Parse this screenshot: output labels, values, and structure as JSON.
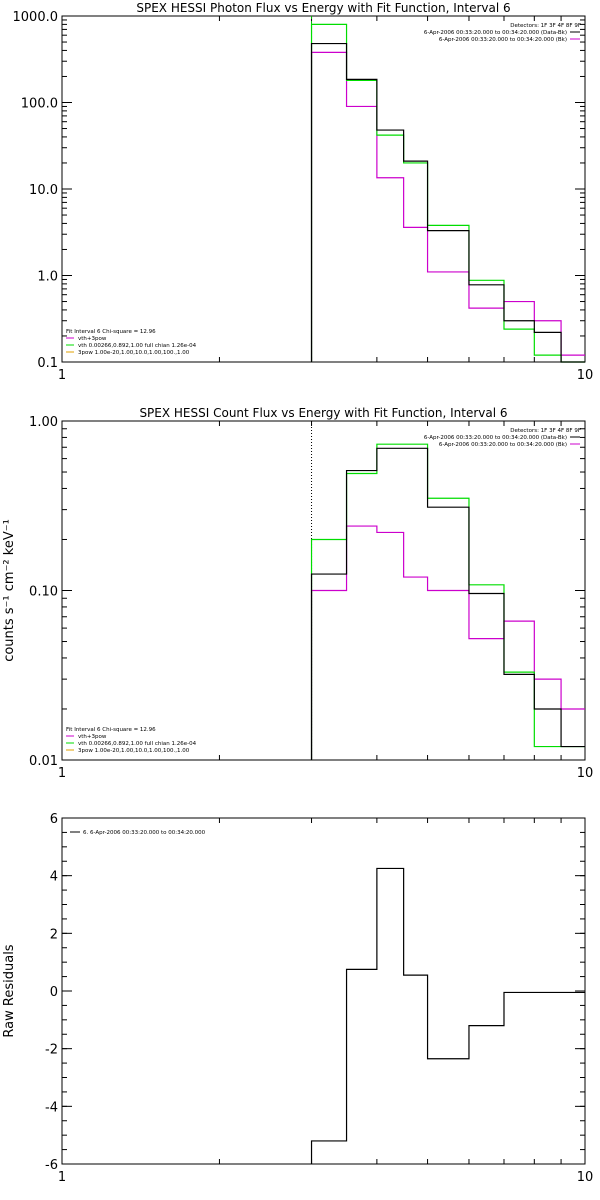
{
  "chart_data": [
    {
      "type": "line",
      "title": "SPEX HESSI Photon Flux vs Energy with Fit Function, Interval 6",
      "ylabel": "",
      "xscale": "log",
      "yscale": "log",
      "xlim": [
        1,
        10
      ],
      "ylim": [
        0.1,
        1000
      ],
      "x_ticks": [
        "1",
        "10"
      ],
      "y_ticks": [
        {
          "v": 0.1,
          "label": "0.1"
        },
        {
          "v": 1,
          "label": "1.0"
        },
        {
          "v": 10,
          "label": "10.0"
        },
        {
          "v": 100,
          "label": "100.0"
        },
        {
          "v": 1000,
          "label": "1000.0"
        }
      ],
      "vline_x": 3.0,
      "vline_style": "dashed",
      "vline_color": "#00bb00",
      "legend_top": [
        "Detectors: 1F 3F 4F 8F 9F",
        "6-Apr-2006 00:33:20.000 to 00:34:20.000 (Data-Bk)",
        "6-Apr-2006 00:33:20.000 to 00:34:20.000 (Bk)"
      ],
      "legend_bottom": [
        "Fit Interval 6    Chi-square = 12.96",
        "vth+3pow",
        "vth 0.00266,0.892,1.00  full chian 1.26e-04",
        "3pow 1.00e-20,1.00,10.0,1.00,100.,1.00"
      ],
      "edges": [
        3.0,
        3.5,
        4.0,
        4.5,
        5.0,
        6.0,
        7.0,
        8.0,
        9.0,
        10.0
      ],
      "series": [
        {
          "name": "",
          "color": "#000000",
          "values": [
            480,
            185,
            48,
            21,
            3.3,
            0.78,
            0.3,
            0.22,
            0.1
          ]
        },
        {
          "name": "",
          "color": "#cc00cc",
          "values": [
            380,
            90,
            13.5,
            3.6,
            1.1,
            0.42,
            0.5,
            0.3,
            0.12
          ]
        },
        {
          "name": "",
          "color": "#00dd00",
          "values": [
            800,
            180,
            42,
            20,
            3.8,
            0.88,
            0.24,
            0.12,
            0.1
          ]
        }
      ]
    },
    {
      "type": "line",
      "title": "SPEX HESSI Count Flux vs Energy with Fit Function, Interval 6",
      "ylabel": "counts s⁻¹ cm⁻² keV⁻¹",
      "xscale": "log",
      "yscale": "log",
      "xlim": [
        1,
        10
      ],
      "ylim": [
        0.01,
        1
      ],
      "x_ticks": [
        "1",
        "10"
      ],
      "y_ticks": [
        {
          "v": 0.01,
          "label": "0.01"
        },
        {
          "v": 0.1,
          "label": "0.10"
        },
        {
          "v": 1,
          "label": "1.00"
        }
      ],
      "vline_x": 3.0,
      "vline_style": "dotted",
      "vline_color": "#000000",
      "legend_top": [
        "Detectors: 1F 3F 4F 8F 9F",
        "6-Apr-2006 00:33:20.000 to 00:34:20.000 (Data-Bk)",
        "6-Apr-2006 00:33:20.000 to 00:34:20.000 (Bk)"
      ],
      "legend_bottom": [
        "Fit Interval 6    Chi-square = 12.96",
        "vth+3pow",
        "vth 0.00266,0.892,1.00  full chian 1.26e-04",
        "3pow 1.00e-20,1.00,10.0,1.00,100.,1.00"
      ],
      "edges": [
        3.0,
        3.5,
        4.0,
        4.5,
        5.0,
        6.0,
        7.0,
        8.0,
        9.0,
        10.0
      ],
      "series": [
        {
          "name": "",
          "color": "#000000",
          "values": [
            0.125,
            0.51,
            0.69,
            0.69,
            0.31,
            0.096,
            0.032,
            0.02,
            0.012
          ]
        },
        {
          "name": "",
          "color": "#cc00cc",
          "values": [
            0.1,
            0.24,
            0.22,
            0.12,
            0.1,
            0.052,
            0.066,
            0.03,
            0.02
          ]
        },
        {
          "name": "",
          "color": "#00dd00",
          "values": [
            0.2,
            0.49,
            0.73,
            0.73,
            0.35,
            0.108,
            0.033,
            0.012,
            0.012
          ]
        }
      ]
    },
    {
      "type": "line",
      "title": "",
      "ylabel": "Raw Residuals",
      "xscale": "log",
      "yscale": "linear",
      "xlim": [
        1,
        10
      ],
      "ylim": [
        -6,
        6
      ],
      "x_ticks": [
        "1",
        "10"
      ],
      "y_ticks": [
        {
          "v": -6,
          "label": "-6"
        },
        {
          "v": -4,
          "label": "-4"
        },
        {
          "v": -2,
          "label": "-2"
        },
        {
          "v": 0,
          "label": "0"
        },
        {
          "v": 2,
          "label": "2"
        },
        {
          "v": 4,
          "label": "4"
        },
        {
          "v": 6,
          "label": "6"
        }
      ],
      "legend_top": [
        "6.  6-Apr-2006 00:33:20.000 to 00:34:20.000"
      ],
      "edges": [
        3.0,
        3.5,
        4.0,
        4.5,
        5.0,
        6.0,
        7.0,
        8.0,
        9.0,
        10.0
      ],
      "series": [
        {
          "name": "",
          "color": "#000000",
          "values": [
            -5.2,
            0.75,
            4.25,
            0.55,
            -2.35,
            -1.2,
            -0.05,
            -0.05,
            -0.05
          ]
        }
      ]
    }
  ]
}
